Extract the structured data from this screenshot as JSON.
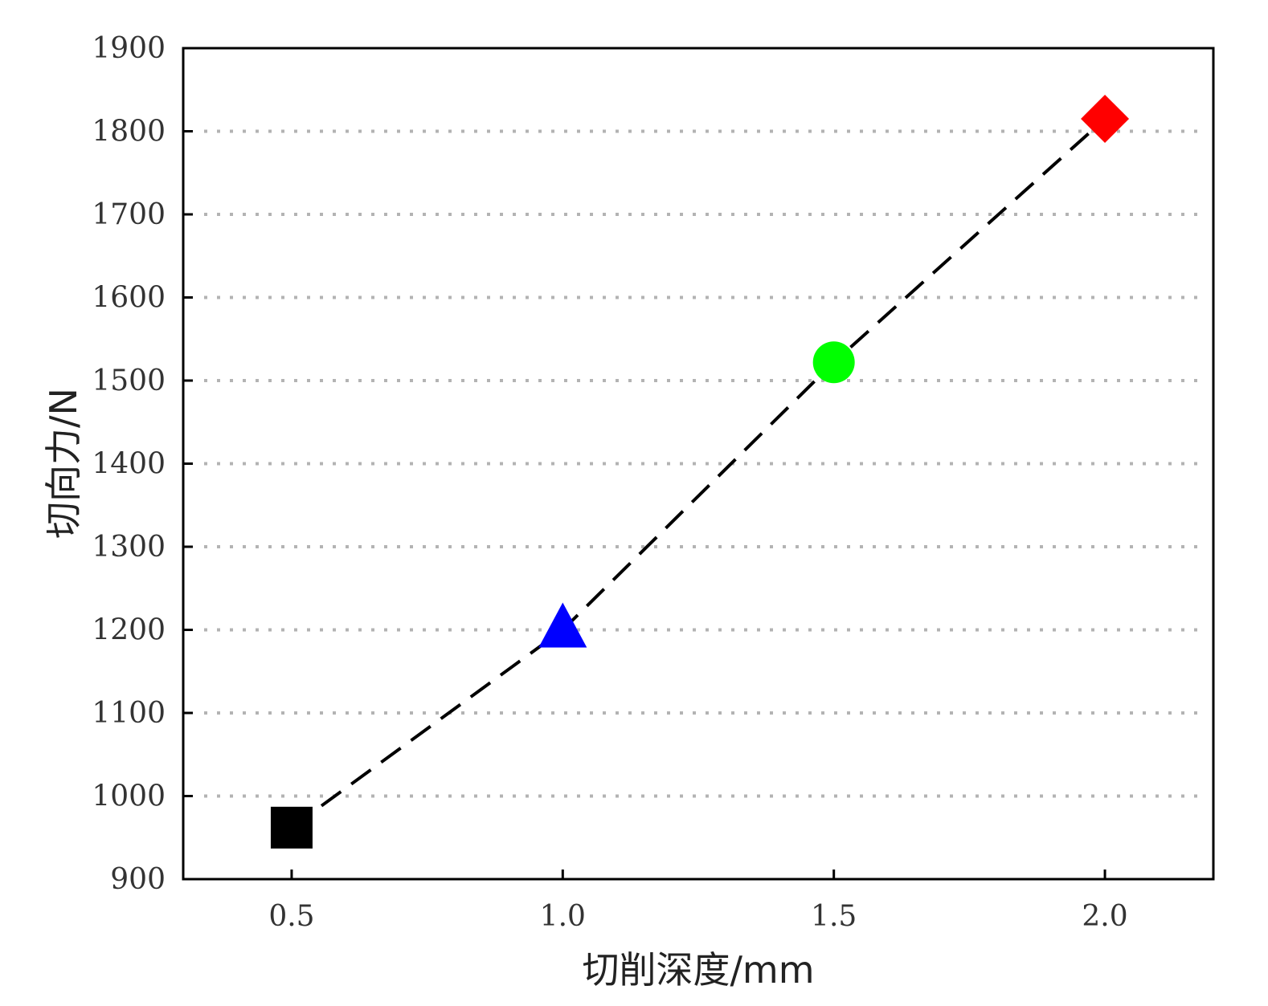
{
  "chart_data": {
    "type": "scatter",
    "title": "",
    "xlabel": "切削深度/mm",
    "ylabel": "切向力/N",
    "xlim": [
      0.3,
      2.2
    ],
    "ylim": [
      900,
      1900
    ],
    "x_ticks": [
      {
        "value": 0.5,
        "label": "0.5"
      },
      {
        "value": 1.0,
        "label": "1.0"
      },
      {
        "value": 1.5,
        "label": "1.5"
      },
      {
        "value": 2.0,
        "label": "2.0"
      }
    ],
    "y_ticks": [
      {
        "value": 900,
        "label": "900"
      },
      {
        "value": 1000,
        "label": "1000"
      },
      {
        "value": 1100,
        "label": "1100"
      },
      {
        "value": 1200,
        "label": "1200"
      },
      {
        "value": 1300,
        "label": "1300"
      },
      {
        "value": 1400,
        "label": "1400"
      },
      {
        "value": 1500,
        "label": "1500"
      },
      {
        "value": 1600,
        "label": "1600"
      },
      {
        "value": 1700,
        "label": "1700"
      },
      {
        "value": 1800,
        "label": "1800"
      },
      {
        "value": 1900,
        "label": "1900"
      }
    ],
    "grid": "horizontal dotted",
    "points": [
      {
        "x": 0.5,
        "y": 962,
        "marker": "square",
        "color": "#000000"
      },
      {
        "x": 1.0,
        "y": 1200,
        "marker": "triangle",
        "color": "#0000ff"
      },
      {
        "x": 1.5,
        "y": 1522,
        "marker": "circle",
        "color": "#00ff00"
      },
      {
        "x": 2.0,
        "y": 1815,
        "marker": "diamond",
        "color": "#ff0000"
      }
    ],
    "connector": {
      "style": "dashed",
      "color": "#000000"
    }
  }
}
